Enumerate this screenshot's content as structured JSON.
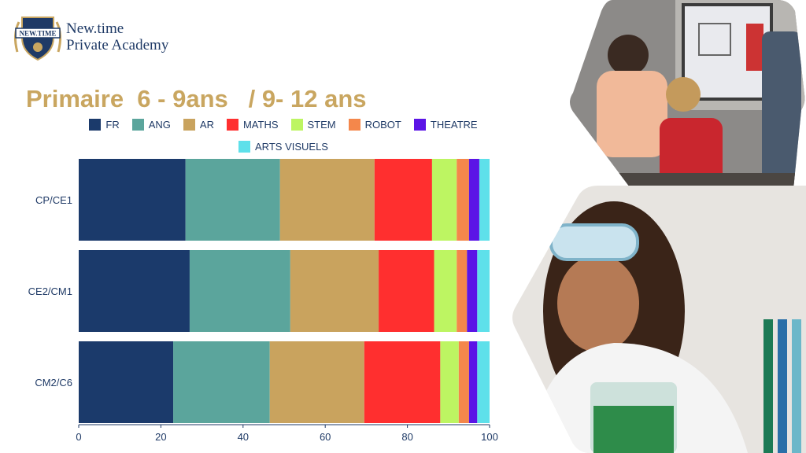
{
  "header": {
    "logo_text": "NEW.TIME",
    "brand_line1": "New.time",
    "brand_line2": "Private Academy"
  },
  "title": "Primaire  6 - 9ans   / 9- 12 ans",
  "colors": {
    "brand": "#1f3a66",
    "gold": "#c9a660"
  },
  "chart_data": {
    "type": "bar",
    "orientation": "horizontal",
    "stacked": true,
    "categories": [
      "CP/CE1",
      "CE2/CM1",
      "CM2/C6"
    ],
    "series": [
      {
        "name": "FR",
        "color": "#1b3a6b",
        "values": [
          26,
          27,
          23
        ]
      },
      {
        "name": "ANG",
        "color": "#5ba59c",
        "values": [
          23,
          24.5,
          23.5
        ]
      },
      {
        "name": "AR",
        "color": "#c9a35e",
        "values": [
          23,
          21.5,
          23
        ]
      },
      {
        "name": "MATHS",
        "color": "#ff2f2f",
        "values": [
          14,
          13.5,
          18.5
        ]
      },
      {
        "name": "STEM",
        "color": "#bdf562",
        "values": [
          6,
          5.5,
          4.5
        ]
      },
      {
        "name": "ROBOT",
        "color": "#f4874b",
        "values": [
          3,
          2.5,
          2.5
        ]
      },
      {
        "name": "THEATRE",
        "color": "#5b14e6",
        "values": [
          2.5,
          2.5,
          2
        ]
      },
      {
        "name": "ARTS VISUELS",
        "color": "#5ee0ea",
        "values": [
          2.5,
          3,
          3
        ]
      }
    ],
    "xlim": [
      0,
      100
    ],
    "xticks": [
      0,
      20,
      40,
      60,
      80,
      100
    ],
    "legend": "top",
    "grid": false
  }
}
